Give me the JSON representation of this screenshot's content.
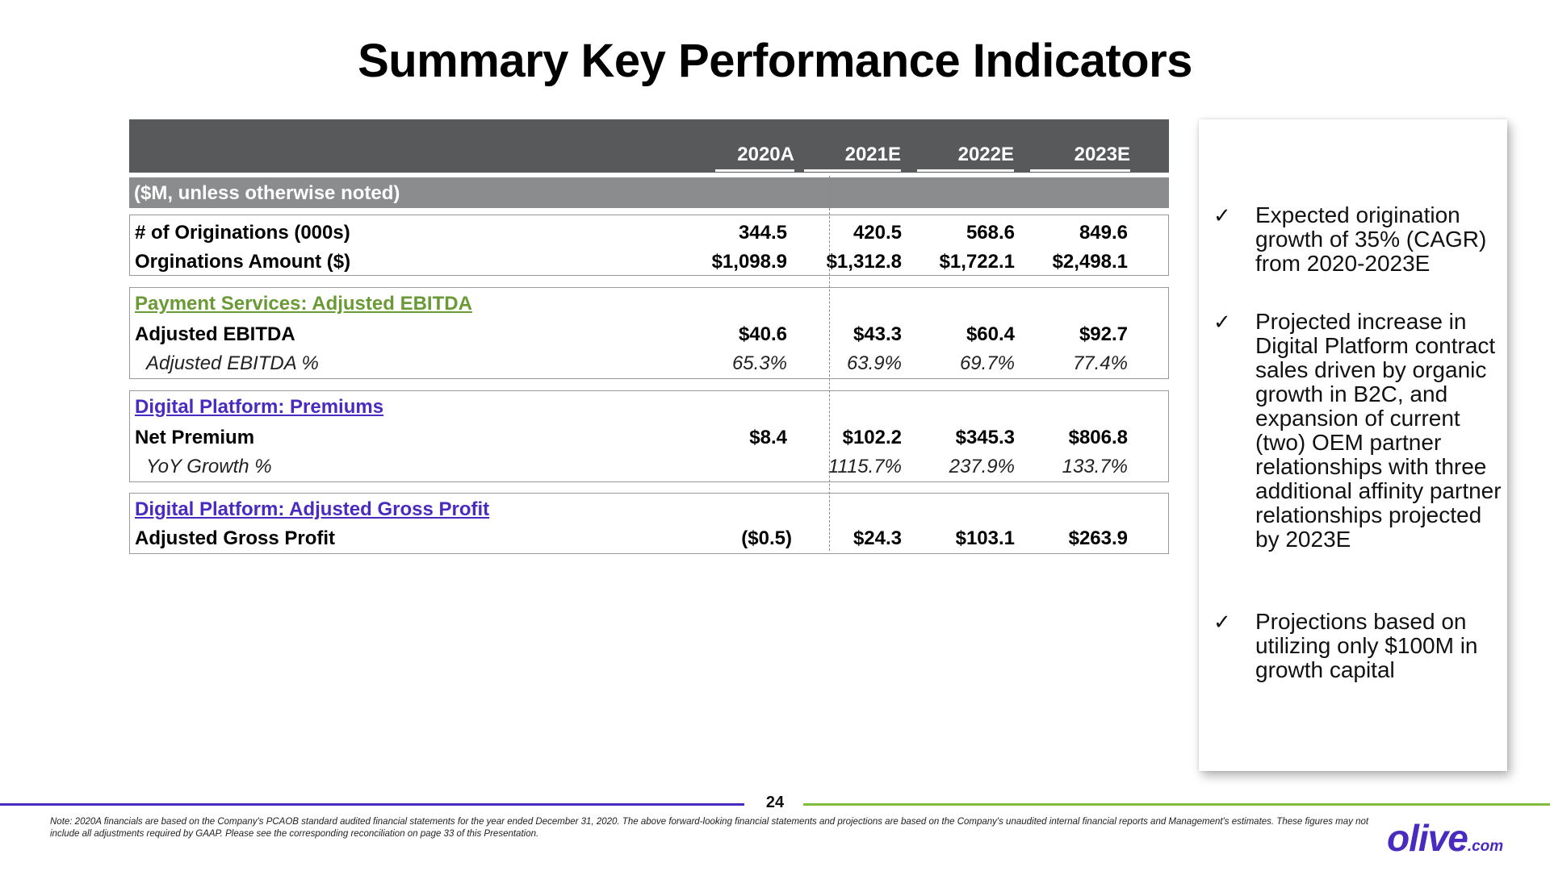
{
  "title": "Summary Key Performance Indicators",
  "table": {
    "years": [
      "2020A",
      "2021E",
      "2022E",
      "2023E"
    ],
    "unit_note": "($M, unless otherwise noted)",
    "originations": {
      "rows": [
        {
          "label": "# of Originations (000s)",
          "values": [
            "344.5",
            "420.5",
            "568.6",
            "849.6"
          ]
        },
        {
          "label": "Orginations Amount ($)",
          "values": [
            "$1,098.9",
            "$1,312.8",
            "$1,722.1",
            "$2,498.1"
          ]
        }
      ]
    },
    "payment_services": {
      "title": "Payment Services: Adjusted EBITDA",
      "rows": [
        {
          "label": "Adjusted EBITDA",
          "values": [
            "$40.6",
            "$43.3",
            "$60.4",
            "$92.7"
          ]
        },
        {
          "label": "Adjusted EBITDA %",
          "values": [
            "65.3%",
            "63.9%",
            "69.7%",
            "77.4%"
          ]
        }
      ]
    },
    "premiums": {
      "title": "Digital Platform: Premiums",
      "rows": [
        {
          "label": "Net Premium",
          "values": [
            "$8.4",
            "$102.2",
            "$345.3",
            "$806.8"
          ]
        },
        {
          "label": "YoY Growth %",
          "values": [
            "",
            "1115.7%",
            "237.9%",
            "133.7%"
          ]
        }
      ]
    },
    "gross_profit": {
      "title": "Digital Platform: Adjusted Gross Profit",
      "rows": [
        {
          "label": "Adjusted Gross Profit",
          "values": [
            "($0.5)",
            "$24.3",
            "$103.1",
            "$263.9"
          ]
        }
      ]
    }
  },
  "sidebar": {
    "check_glyph": "✓",
    "bullets": [
      "Expected origination growth of 35% (CAGR) from 2020-2023E",
      "Projected increase in Digital Platform contract sales driven by organic growth in B2C, and expansion of current (two) OEM partner relationships with three additional affinity partner relationships projected by 2023E",
      "Projections based on utilizing only $100M in growth capital"
    ]
  },
  "footer": {
    "page_number": "24",
    "note": "Note: 2020A financials are based on the Company's PCAOB standard audited financial statements for the year ended December 31, 2020. The above forward-looking financial statements and projections are based on the Company's unaudited internal financial reports and Management's estimates. These figures may not include all adjustments required by GAAP. Please see the corresponding reconciliation on page 33 of this Presentation.",
    "logo_main": "olive",
    "logo_suffix": ".com"
  },
  "colors": {
    "header_dark": "#58595b",
    "header_light": "#8b8c8e",
    "green": "#6a9a36",
    "purple": "#4a2bbf",
    "footer_green": "#7fbf3f"
  }
}
